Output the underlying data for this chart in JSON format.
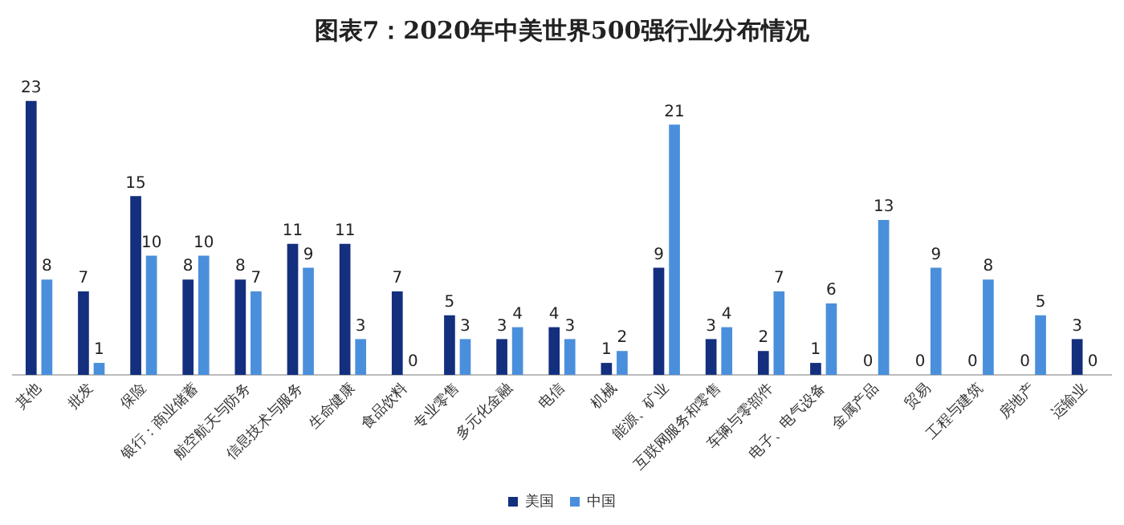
{
  "chart_data": {
    "type": "bar",
    "title": "图表7：2020年中美世界500强行业分布情况",
    "categories": [
      "其他",
      "批发",
      "保险",
      "银行：商业储蓄",
      "航空航天与防务",
      "信息技术与服务",
      "生命健康",
      "食品饮料",
      "专业零售",
      "多元化金融",
      "电信",
      "机械",
      "能源、矿业",
      "互联网服务和零售",
      "车辆与零部件",
      "电子、电气设备",
      "金属产品",
      "贸易",
      "工程与建筑",
      "房地产",
      "运输业"
    ],
    "series": [
      {
        "name": "美国",
        "color": "#132f7e",
        "values": [
          23,
          7,
          15,
          8,
          8,
          11,
          11,
          7,
          5,
          3,
          4,
          1,
          9,
          3,
          2,
          1,
          0,
          0,
          0,
          0,
          3
        ]
      },
      {
        "name": "中国",
        "color": "#4a8fdb",
        "values": [
          8,
          1,
          10,
          10,
          7,
          9,
          3,
          0,
          3,
          4,
          3,
          2,
          21,
          4,
          7,
          6,
          13,
          9,
          8,
          5,
          0
        ]
      }
    ],
    "data_labels": true,
    "legend": "bottom",
    "grid": false
  }
}
